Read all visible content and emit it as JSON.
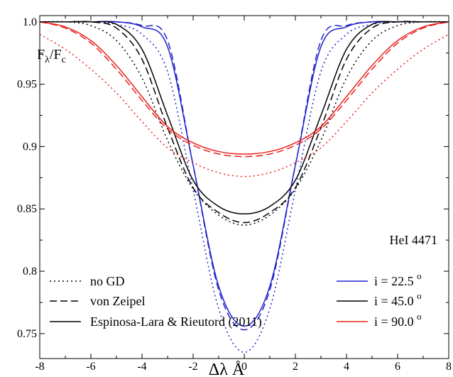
{
  "chart_data": {
    "type": "line",
    "title": "",
    "xlabel": "Δλ Å",
    "ylabel_main": "F",
    "ylabel_sub1": "λ",
    "ylabel_mid": "/F",
    "ylabel_sub2": "c",
    "xlim": [
      -8,
      8
    ],
    "ylim": [
      0.73,
      1.005
    ],
    "xticks": [
      -8,
      -6,
      -4,
      -2,
      0,
      2,
      4,
      6,
      8
    ],
    "xtick_labels": [
      "-8",
      "-6",
      "-4",
      "-2",
      "0",
      "2",
      "4",
      "6",
      "8"
    ],
    "yticks": [
      0.75,
      0.8,
      0.85,
      0.9,
      0.95,
      1.0
    ],
    "ytick_labels": [
      "0.75",
      "0.8",
      "0.85",
      "0.9",
      "0.95",
      "1.0"
    ],
    "annotation": "HeI 4471",
    "grid": false,
    "legend_styles": {
      "placement": "bottom-left",
      "entries": [
        {
          "label": "no GD",
          "dash": "dotted"
        },
        {
          "label": "von Zeipel",
          "dash": "dashed"
        },
        {
          "label": "Espinosa-Lara & Rieutord (2011)",
          "dash": "solid"
        }
      ]
    },
    "legend_colors": {
      "placement": "bottom-right",
      "entries": [
        {
          "label": "i = 22.5",
          "sup": "o",
          "color": "#2222cc"
        },
        {
          "label": "i = 45.0",
          "sup": "o",
          "color": "#000000"
        },
        {
          "label": "i = 90.0",
          "sup": "o",
          "color": "#e8201c"
        }
      ]
    },
    "series": [
      {
        "inclination": 22.5,
        "gd": "no GD",
        "dash": "dotted",
        "color": "#2222cc",
        "x": [
          -8,
          -7,
          -6,
          -5,
          -4,
          -3,
          -2,
          -1,
          0,
          1,
          2,
          3,
          4,
          5,
          6,
          7,
          8
        ],
        "y": [
          1.0,
          1.0,
          1.0,
          0.998,
          0.99,
          0.96,
          0.865,
          0.77,
          0.735,
          0.77,
          0.865,
          0.96,
          0.99,
          0.998,
          1.0,
          1.0,
          1.0
        ]
      },
      {
        "inclination": 22.5,
        "gd": "von Zeipel",
        "dash": "dashed",
        "color": "#2222cc",
        "x": [
          -8,
          -7,
          -6,
          -5,
          -4,
          -3,
          -2,
          -1,
          0,
          1,
          2,
          3,
          4,
          5,
          6,
          7,
          8
        ],
        "y": [
          1.0,
          1.0,
          1.0,
          1.0,
          0.997,
          0.985,
          0.885,
          0.785,
          0.753,
          0.785,
          0.885,
          0.985,
          0.997,
          1.0,
          1.0,
          1.0,
          1.0
        ]
      },
      {
        "inclination": 22.5,
        "gd": "Espinosa-Lara & Rieutord (2011)",
        "dash": "solid",
        "color": "#2222cc",
        "x": [
          -8,
          -7,
          -6,
          -5,
          -4,
          -3,
          -2,
          -1,
          0,
          1,
          2,
          3,
          4,
          5,
          6,
          7,
          8
        ],
        "y": [
          1.0,
          1.0,
          1.0,
          1.0,
          0.996,
          0.98,
          0.885,
          0.788,
          0.756,
          0.788,
          0.885,
          0.98,
          0.996,
          1.0,
          1.0,
          1.0,
          1.0
        ]
      },
      {
        "inclination": 45.0,
        "gd": "no GD",
        "dash": "dotted",
        "color": "#000000",
        "x": [
          -8,
          -7,
          -6,
          -5,
          -4,
          -3,
          -2,
          -1,
          0,
          1,
          2,
          3,
          4,
          5,
          6,
          7,
          8
        ],
        "y": [
          1.0,
          1.0,
          0.997,
          0.985,
          0.955,
          0.905,
          0.866,
          0.845,
          0.837,
          0.845,
          0.866,
          0.905,
          0.955,
          0.985,
          0.997,
          1.0,
          1.0
        ]
      },
      {
        "inclination": 45.0,
        "gd": "von Zeipel",
        "dash": "dashed",
        "color": "#000000",
        "x": [
          -8,
          -7,
          -6,
          -5,
          -4,
          -3,
          -2,
          -1,
          0,
          1,
          2,
          3,
          4,
          5,
          6,
          7,
          8
        ],
        "y": [
          1.0,
          1.0,
          1.0,
          0.995,
          0.97,
          0.915,
          0.867,
          0.847,
          0.839,
          0.847,
          0.867,
          0.915,
          0.97,
          0.995,
          1.0,
          1.0,
          1.0
        ]
      },
      {
        "inclination": 45.0,
        "gd": "Espinosa-Lara & Rieutord (2011)",
        "dash": "solid",
        "color": "#000000",
        "x": [
          -8,
          -7,
          -6,
          -5,
          -4,
          -3,
          -2,
          -1,
          0,
          1,
          2,
          3,
          4,
          5,
          6,
          7,
          8
        ],
        "y": [
          1.0,
          1.0,
          1.0,
          0.998,
          0.978,
          0.925,
          0.873,
          0.852,
          0.846,
          0.852,
          0.873,
          0.925,
          0.978,
          0.998,
          1.0,
          1.0,
          1.0
        ]
      },
      {
        "inclination": 90.0,
        "gd": "no GD",
        "dash": "dotted",
        "color": "#e8201c",
        "x": [
          -8,
          -7,
          -6,
          -5,
          -4,
          -3,
          -2,
          -1,
          0,
          1,
          2,
          3,
          4,
          5,
          6,
          7,
          8
        ],
        "y": [
          0.99,
          0.978,
          0.962,
          0.943,
          0.92,
          0.899,
          0.887,
          0.879,
          0.876,
          0.879,
          0.887,
          0.899,
          0.92,
          0.943,
          0.962,
          0.978,
          0.99
        ]
      },
      {
        "inclination": 90.0,
        "gd": "von Zeipel",
        "dash": "dashed",
        "color": "#e8201c",
        "x": [
          -8,
          -7,
          -6,
          -5,
          -4,
          -3,
          -2,
          -1,
          0,
          1,
          2,
          3,
          4,
          5,
          6,
          7,
          8
        ],
        "y": [
          1.0,
          0.995,
          0.983,
          0.962,
          0.937,
          0.914,
          0.901,
          0.894,
          0.892,
          0.894,
          0.901,
          0.914,
          0.937,
          0.962,
          0.983,
          0.995,
          1.0
        ]
      },
      {
        "inclination": 90.0,
        "gd": "Espinosa-Lara & Rieutord (2011)",
        "dash": "solid",
        "color": "#e8201c",
        "x": [
          -8,
          -7,
          -6,
          -5,
          -4,
          -3,
          -2,
          -1,
          0,
          1,
          2,
          3,
          4,
          5,
          6,
          7,
          8
        ],
        "y": [
          1.0,
          0.996,
          0.985,
          0.965,
          0.94,
          0.916,
          0.903,
          0.896,
          0.894,
          0.896,
          0.903,
          0.916,
          0.94,
          0.965,
          0.985,
          0.996,
          1.0
        ]
      }
    ]
  }
}
